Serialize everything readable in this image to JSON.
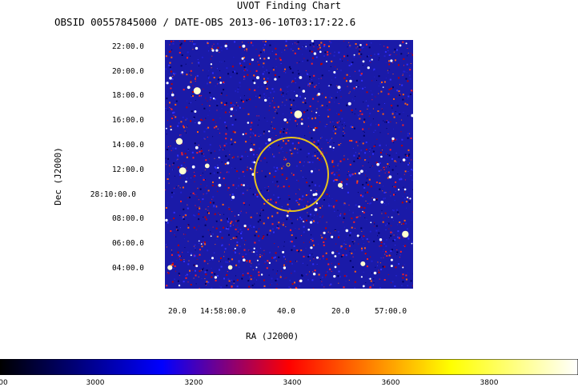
{
  "chart_data": {
    "type": "heatmap",
    "title": "UVOT Finding Chart",
    "subtitle": "OBSID 00557845000 / DATE-OBS 2013-06-10T03:17:22.6",
    "xlabel": "RA (J2000)",
    "ylabel": "Dec (J2000)",
    "x_ticks": [
      "20.0",
      "14:58:00.0",
      "40.0",
      "20.0",
      "57:00.0"
    ],
    "y_ticks": [
      "22:00.0",
      "20:00.0",
      "18:00.0",
      "16:00.0",
      "14:00.0",
      "12:00.0",
      "28:10:00.0",
      "08:00.0",
      "06:00.0",
      "04:00.0"
    ],
    "colorbar": {
      "ticks": [
        "00",
        "3000",
        "3200",
        "3400",
        "3600",
        "3800"
      ],
      "colors": [
        "#000000",
        "#0000ff",
        "#ff0000",
        "#ffff00",
        "#ffffff"
      ]
    },
    "circle_color": "#e8c31c"
  }
}
